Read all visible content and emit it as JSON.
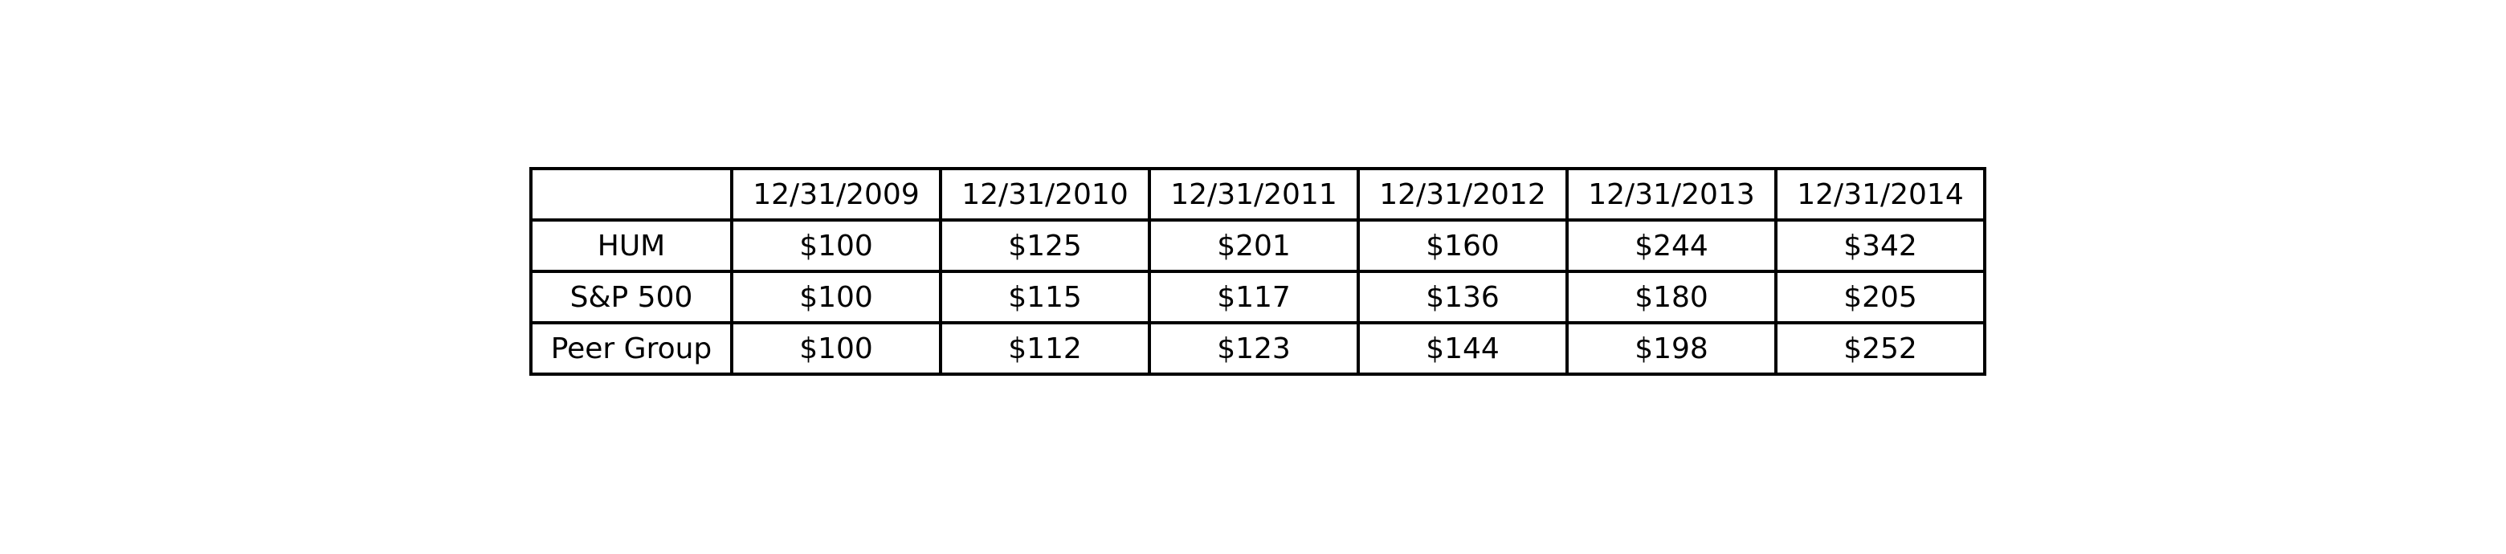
{
  "chart_data": {
    "type": "table",
    "columns": [
      "",
      "12/31/2009",
      "12/31/2010",
      "12/31/2011",
      "12/31/2012",
      "12/31/2013",
      "12/31/2014"
    ],
    "rows": [
      {
        "label": "HUM",
        "values": [
          "$100",
          "$125",
          "$201",
          "$160",
          "$244",
          "$342"
        ]
      },
      {
        "label": "S&P 500",
        "values": [
          "$100",
          "$115",
          "$117",
          "$136",
          "$180",
          "$205"
        ]
      },
      {
        "label": "Peer Group",
        "values": [
          "$100",
          "$112",
          "$123",
          "$144",
          "$198",
          "$252"
        ]
      }
    ]
  },
  "colors": {
    "border": "#000000",
    "text": "#000000",
    "background": "#ffffff"
  }
}
